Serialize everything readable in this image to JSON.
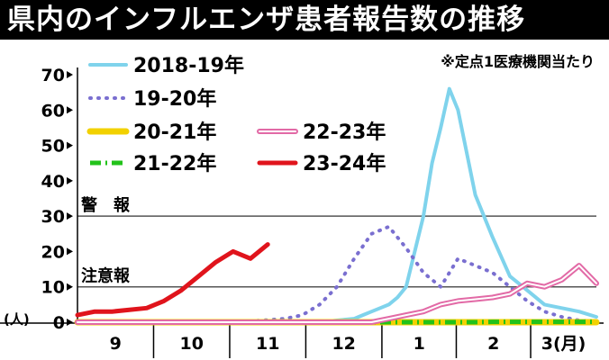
{
  "title": "県内のインフルエンザ患者報告数の推移",
  "note": "※定点1医療機関当たり",
  "chart_data": {
    "type": "line",
    "title": "県内のインフルエンザ患者報告数の推移",
    "subtitle": "※定点1医療機関当たり",
    "ylabel": "(人)",
    "xlabel": "",
    "ylim": [
      0,
      70
    ],
    "yticks": [
      "0",
      "10",
      "20",
      "30",
      "40",
      "50",
      "60",
      "70"
    ],
    "month_labels": [
      "9",
      "10",
      "11",
      "12",
      "1",
      "2",
      "3(月)"
    ],
    "xlim": [
      0,
      30
    ],
    "grid": false,
    "legend_position": "top",
    "thresholds": [
      {
        "name": "警　報",
        "value": 30
      },
      {
        "name": "注意報",
        "value": 10
      }
    ],
    "series": [
      {
        "name": "2018-19年",
        "color": "#7fd3ec",
        "style": "solid",
        "x": [
          14,
          15,
          16,
          16.5,
          17,
          17.5,
          18,
          18.5,
          19,
          19.5,
          20,
          20.5,
          21,
          21.5,
          22,
          22.5,
          23,
          24,
          25,
          26,
          27,
          28,
          29,
          30
        ],
        "y": [
          0,
          0.5,
          1,
          2,
          3,
          4,
          5,
          7,
          10,
          20,
          30,
          45,
          55,
          66,
          60,
          48,
          36,
          24,
          13,
          9,
          5,
          4,
          3,
          1.5
        ]
      },
      {
        "name": "19-20年",
        "color": "#7a6fd0",
        "style": "dotted",
        "x": [
          9,
          10,
          11,
          12,
          13,
          14,
          15,
          16,
          17,
          18,
          19,
          20,
          21,
          22,
          23,
          24,
          25,
          26,
          27,
          28,
          29,
          30
        ],
        "y": [
          0,
          0.3,
          0.6,
          1,
          2,
          5,
          10,
          18,
          25,
          27,
          21,
          14,
          10,
          18,
          16,
          14,
          10,
          6,
          3,
          1.5,
          0.5,
          0.2
        ]
      },
      {
        "name": "20-21年",
        "color": "#f2d100",
        "style": "solid",
        "x": [
          0,
          30
        ],
        "y": [
          0,
          0
        ]
      },
      {
        "name": "21-22年",
        "color": "#22c21a",
        "style": "dashdot",
        "x": [
          0,
          18,
          19,
          20,
          21,
          22,
          23,
          24,
          25,
          26,
          27,
          28,
          29,
          30
        ],
        "y": [
          0,
          0,
          0,
          0,
          0,
          0,
          0,
          0.1,
          0.1,
          0.1,
          0.1,
          0.1,
          0.1,
          0.1
        ]
      },
      {
        "name": "22-23年",
        "color": "#e26aa6",
        "style": "double",
        "x": [
          0,
          17,
          18,
          19,
          20,
          21,
          22,
          23,
          24,
          25,
          26,
          27,
          28,
          29,
          30
        ],
        "y": [
          0,
          0,
          1,
          2,
          3,
          5,
          6,
          6.5,
          7,
          8,
          11,
          10,
          12,
          16,
          11
        ]
      },
      {
        "name": "23-24年",
        "color": "#e0141c",
        "style": "solid",
        "x": [
          0,
          1,
          2,
          3,
          4,
          5,
          6,
          7,
          8,
          9,
          10,
          11
        ],
        "y": [
          2,
          3,
          3,
          3.5,
          4,
          6,
          9,
          13,
          17,
          20,
          18,
          22
        ]
      }
    ]
  }
}
